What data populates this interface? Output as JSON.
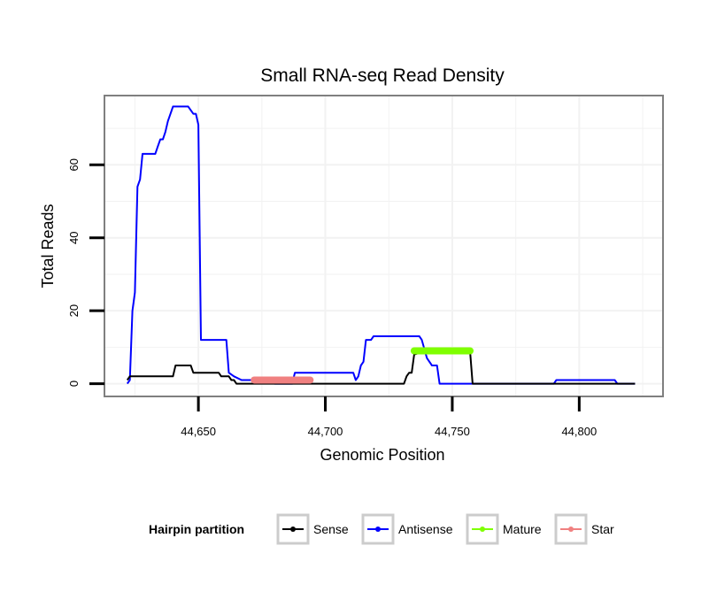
{
  "chart_data": {
    "type": "line",
    "title": "Small RNA-seq Read Density",
    "xlabel": "Genomic Position",
    "ylabel": "Total Reads",
    "xlim": [
      44613,
      44833
    ],
    "ylim": [
      -3.5,
      79
    ],
    "x_ticks": [
      {
        "value": 44650,
        "label": "44,650"
      },
      {
        "value": 44700,
        "label": "44,700"
      },
      {
        "value": 44750,
        "label": "44,750"
      },
      {
        "value": 44800,
        "label": "44,800"
      }
    ],
    "y_ticks": [
      {
        "value": 0,
        "label": "0"
      },
      {
        "value": 20,
        "label": "20"
      },
      {
        "value": 40,
        "label": "40"
      },
      {
        "value": 60,
        "label": "60"
      }
    ],
    "grid": true,
    "legend": {
      "title": "Hairpin partition",
      "position": "bottom",
      "entries": [
        {
          "name": "Sense",
          "color": "#000000"
        },
        {
          "name": "Antisense",
          "color": "#0000FF"
        },
        {
          "name": "Mature",
          "color": "#7FFF00"
        },
        {
          "name": "Star",
          "color": "#F08080"
        }
      ]
    },
    "series": [
      {
        "name": "Sense",
        "color": "#000000",
        "kind": "line",
        "points": [
          [
            44622,
            1
          ],
          [
            44623,
            2
          ],
          [
            44640,
            2
          ],
          [
            44641,
            5
          ],
          [
            44647,
            5
          ],
          [
            44648,
            3
          ],
          [
            44658,
            3
          ],
          [
            44659,
            2
          ],
          [
            44662,
            2
          ],
          [
            44663,
            1
          ],
          [
            44664,
            1
          ],
          [
            44665,
            0
          ],
          [
            44720,
            0
          ],
          [
            44731,
            0
          ],
          [
            44732,
            2
          ],
          [
            44733,
            3
          ],
          [
            44734,
            3
          ],
          [
            44735,
            8
          ],
          [
            44740,
            9
          ],
          [
            44748,
            9
          ],
          [
            44756,
            9
          ],
          [
            44757,
            9
          ],
          [
            44758,
            0
          ],
          [
            44822,
            0
          ]
        ]
      },
      {
        "name": "Antisense",
        "color": "#0000FF",
        "kind": "line",
        "points": [
          [
            44622,
            0
          ],
          [
            44623,
            1
          ],
          [
            44624,
            20
          ],
          [
            44625,
            25
          ],
          [
            44626,
            54
          ],
          [
            44627,
            56
          ],
          [
            44628,
            63
          ],
          [
            44633,
            63
          ],
          [
            44634,
            65
          ],
          [
            44635,
            67
          ],
          [
            44636,
            67
          ],
          [
            44637,
            69
          ],
          [
            44638,
            72
          ],
          [
            44639,
            74
          ],
          [
            44640,
            76
          ],
          [
            44646,
            76
          ],
          [
            44648,
            74
          ],
          [
            44649,
            74
          ],
          [
            44650,
            71
          ],
          [
            44651,
            12
          ],
          [
            44661,
            12
          ],
          [
            44662,
            3
          ],
          [
            44664,
            2
          ],
          [
            44667,
            1
          ],
          [
            44678,
            1
          ],
          [
            44680,
            0
          ],
          [
            44687,
            0
          ],
          [
            44688,
            3
          ],
          [
            44711,
            3
          ],
          [
            44712,
            1
          ],
          [
            44713,
            2
          ],
          [
            44714,
            5
          ],
          [
            44715,
            6
          ],
          [
            44716,
            12
          ],
          [
            44718,
            12
          ],
          [
            44719,
            13
          ],
          [
            44737,
            13
          ],
          [
            44738,
            12
          ],
          [
            44740,
            7
          ],
          [
            44742,
            5
          ],
          [
            44744,
            5
          ],
          [
            44745,
            0
          ],
          [
            44790,
            0
          ],
          [
            44791,
            1
          ],
          [
            44814,
            1
          ],
          [
            44815,
            0
          ],
          [
            44822,
            0
          ]
        ]
      },
      {
        "name": "Mature",
        "color": "#7FFF00",
        "kind": "segment",
        "x_start": 44735,
        "x_end": 44757,
        "y": 9
      },
      {
        "name": "Star",
        "color": "#F08080",
        "kind": "segment",
        "x_start": 44672,
        "x_end": 44694,
        "y": 1
      }
    ]
  }
}
